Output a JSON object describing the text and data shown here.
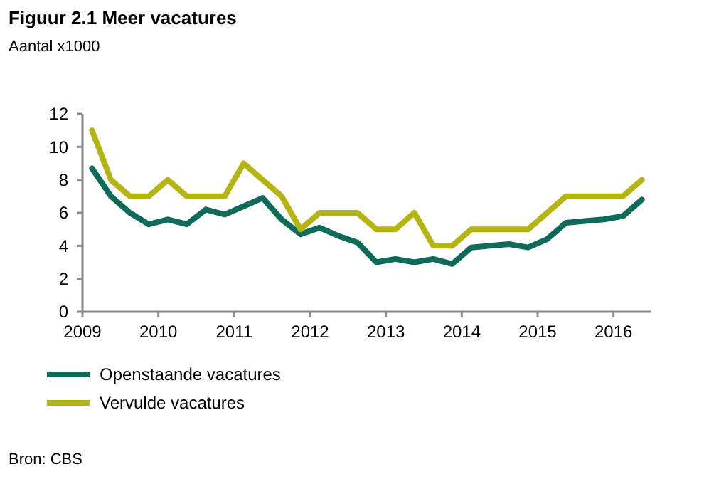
{
  "chart_data": {
    "type": "line",
    "title": "Figuur 2.1 Meer vacatures",
    "subtitle": "Aantal x1000",
    "x": [
      2009.125,
      2009.375,
      2009.625,
      2009.875,
      2010.125,
      2010.375,
      2010.625,
      2010.875,
      2011.125,
      2011.375,
      2011.625,
      2011.875,
      2012.125,
      2012.375,
      2012.625,
      2012.875,
      2013.125,
      2013.375,
      2013.625,
      2013.875,
      2014.125,
      2014.375,
      2014.625,
      2014.875,
      2015.125,
      2015.375,
      2015.625,
      2015.875,
      2016.125,
      2016.375
    ],
    "series": [
      {
        "name": "Openstaande vacatures",
        "color": "#0e6b5a",
        "values": [
          8.7,
          7.0,
          6.0,
          5.3,
          5.6,
          5.3,
          6.2,
          5.9,
          6.4,
          6.9,
          5.6,
          4.7,
          5.1,
          4.6,
          4.2,
          3.0,
          3.2,
          3.0,
          3.2,
          2.9,
          3.9,
          4.0,
          4.1,
          3.9,
          4.4,
          5.4,
          5.5,
          5.6,
          5.8,
          6.8
        ]
      },
      {
        "name": "Vervulde vacatures",
        "color": "#b5b512",
        "values": [
          11,
          8,
          7,
          7,
          8,
          7,
          7,
          7,
          9,
          8,
          7,
          5,
          6,
          6,
          6,
          5,
          5,
          6,
          4,
          4,
          5,
          5,
          5,
          5,
          6,
          7,
          7,
          7,
          7,
          8
        ]
      }
    ],
    "xlim": [
      2009,
      2016.5
    ],
    "xticks": [
      2009,
      2010,
      2011,
      2012,
      2013,
      2014,
      2015,
      2016
    ],
    "ylim": [
      0,
      12
    ],
    "yticks": [
      0,
      2,
      4,
      6,
      8,
      10,
      12
    ],
    "grid": false,
    "legend": "bottom",
    "marker": "none",
    "line_style": "solid",
    "annotations": [
      "Bron: CBS"
    ]
  }
}
